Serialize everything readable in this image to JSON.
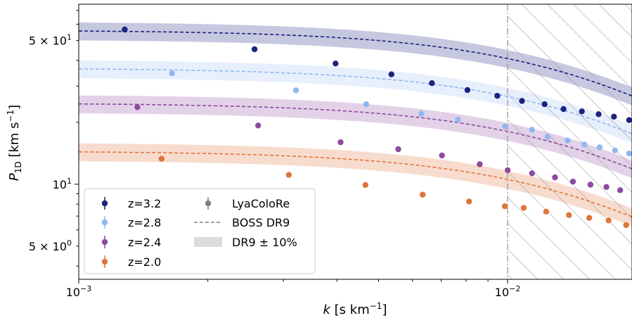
{
  "chart_data": {
    "type": "scatter",
    "x_scale": "log",
    "y_scale": "log",
    "xlim": [
      0.001,
      0.0195
    ],
    "ylim": [
      3.45,
      75
    ],
    "xlabel_italic": "k",
    "xlabel_rest": " [s km",
    "xlabel_sup": "−1",
    "xlabel_end": "]",
    "ylabel_main": "P",
    "ylabel_sub": "1D",
    "ylabel_rest": " [km s",
    "ylabel_sup": "−1",
    "ylabel_end": "]",
    "x_tick_labels": [
      {
        "value": 0.001,
        "base": "10",
        "exp": "−3"
      },
      {
        "value": 0.01,
        "base": "10",
        "exp": "−2"
      }
    ],
    "y_tick_labels": [
      {
        "value": 5,
        "text": "5 × 10",
        "exp": "0"
      },
      {
        "value": 10,
        "text": "10",
        "exp": "1"
      },
      {
        "value": 50,
        "text": "5 × 10",
        "exp": "1"
      }
    ],
    "hatched_region_xmin": 0.01,
    "band_fraction": 0.1,
    "series": [
      {
        "name": "z=3.2",
        "color": "#1a237e",
        "fit": {
          "A": 56.1,
          "k0": 0.0185,
          "p": 0.8
        },
        "points": [
          [
            0.00128,
            56.5
          ],
          [
            0.00257,
            45.3
          ],
          [
            0.00397,
            38.6
          ],
          [
            0.00536,
            34.2
          ],
          [
            0.00666,
            31.0
          ],
          [
            0.00806,
            28.7
          ],
          [
            0.00946,
            26.9
          ],
          [
            0.0108,
            25.4
          ],
          [
            0.0122,
            24.5
          ],
          [
            0.0135,
            23.2
          ],
          [
            0.0149,
            22.6
          ],
          [
            0.0163,
            21.9
          ],
          [
            0.0177,
            21.3
          ],
          [
            0.0192,
            20.5
          ]
        ]
      },
      {
        "name": "z=2.8",
        "color": "#90b8f0",
        "fit": {
          "A": 36.7,
          "k0": 0.0185,
          "p": 0.8
        },
        "points": [
          [
            0.00165,
            34.6
          ],
          [
            0.00321,
            28.6
          ],
          [
            0.00468,
            24.5
          ],
          [
            0.00629,
            22.0
          ],
          [
            0.00766,
            20.6
          ],
          [
            0.00987,
            19.1
          ],
          [
            0.0114,
            18.4
          ],
          [
            0.0124,
            17.0
          ],
          [
            0.0138,
            16.3
          ],
          [
            0.0151,
            15.6
          ],
          [
            0.0164,
            15.1
          ],
          [
            0.0178,
            14.6
          ],
          [
            0.0192,
            14.1
          ]
        ]
      },
      {
        "name": "z=2.4",
        "color": "#8e4a9e",
        "fit": {
          "A": 24.8,
          "k0": 0.0185,
          "p": 0.8
        },
        "points": [
          [
            0.00137,
            23.7
          ],
          [
            0.00262,
            19.3
          ],
          [
            0.00408,
            16.0
          ],
          [
            0.00556,
            14.8
          ],
          [
            0.00703,
            13.8
          ],
          [
            0.00861,
            12.5
          ],
          [
            0.01,
            11.7
          ],
          [
            0.0114,
            11.3
          ],
          [
            0.0129,
            10.8
          ],
          [
            0.0142,
            10.3
          ],
          [
            0.0156,
            9.95
          ],
          [
            0.017,
            9.7
          ],
          [
            0.0183,
            9.36
          ]
        ]
      },
      {
        "name": "z=2.0",
        "color": "#e0753c",
        "fit": {
          "A": 14.5,
          "k0": 0.0185,
          "p": 0.8
        },
        "points": [
          [
            0.00156,
            13.3
          ],
          [
            0.00309,
            11.1
          ],
          [
            0.00466,
            9.92
          ],
          [
            0.00634,
            8.9
          ],
          [
            0.00813,
            8.24
          ],
          [
            0.00985,
            7.81
          ],
          [
            0.0109,
            7.67
          ],
          [
            0.0123,
            7.36
          ],
          [
            0.0139,
            7.08
          ],
          [
            0.0155,
            6.86
          ],
          [
            0.0172,
            6.67
          ],
          [
            0.0189,
            6.33
          ]
        ]
      }
    ],
    "legend": {
      "location": "lower-left",
      "left_column": [
        "z=3.2",
        "z=2.8",
        "z=2.4",
        "z=2.0"
      ],
      "right_column": [
        {
          "kind": "errorbar",
          "label": "LyaColoRe",
          "color": "#808080"
        },
        {
          "kind": "dashed",
          "label": "BOSS DR9",
          "color": "#808080"
        },
        {
          "kind": "band",
          "label": "DR9 ± 10%",
          "color": "#dcdcdc"
        }
      ]
    }
  }
}
